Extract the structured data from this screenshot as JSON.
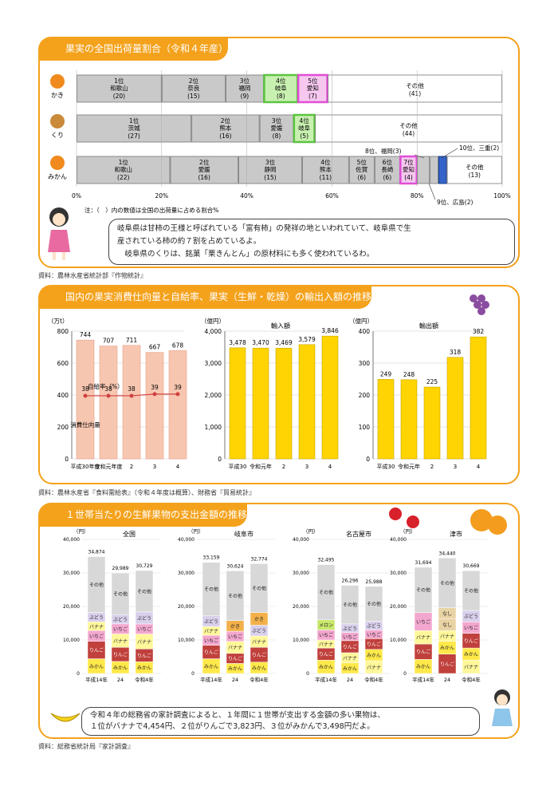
{
  "s1": {
    "title": "果実の全国出荷量割合（令和４年産）",
    "note": "注：（　）内の数値は全国の出荷量に占める割合%",
    "crops": [
      {
        "name": "かき",
        "segs": [
          {
            "label": "1位\n和歌山",
            "pct": "(20)",
            "v": 20
          },
          {
            "label": "2位\n奈良",
            "pct": "(15)",
            "v": 15
          },
          {
            "label": "3位\n福岡",
            "pct": "(9)",
            "v": 9
          },
          {
            "label": "4位\n岐阜",
            "pct": "(8)",
            "v": 8,
            "hl": "g"
          },
          {
            "label": "5位\n愛知",
            "pct": "(7)",
            "v": 7,
            "hl": "p"
          },
          {
            "label": "その他",
            "pct": "(41)",
            "v": 41
          }
        ]
      },
      {
        "name": "くり",
        "segs": [
          {
            "label": "1位\n茨城",
            "pct": "(27)",
            "v": 27
          },
          {
            "label": "2位\n熊本",
            "pct": "(16)",
            "v": 16
          },
          {
            "label": "3位\n愛媛",
            "pct": "(8)",
            "v": 8
          },
          {
            "label": "4位\n岐阜",
            "pct": "(5)",
            "v": 5,
            "hl": "g"
          },
          {
            "label": "その他",
            "pct": "(44)",
            "v": 44
          }
        ]
      },
      {
        "name": "みかん",
        "segs": [
          {
            "label": "1位\n和歌山",
            "pct": "(22)",
            "v": 22
          },
          {
            "label": "2位\n愛媛",
            "pct": "(16)",
            "v": 16
          },
          {
            "label": "3位\n静岡",
            "pct": "(15)",
            "v": 15
          },
          {
            "label": "4位\n熊本",
            "pct": "(11)",
            "v": 11
          },
          {
            "label": "5位\n佐賀",
            "pct": "(6)",
            "v": 6
          },
          {
            "label": "6位\n長崎",
            "pct": "(6)",
            "v": 6
          },
          {
            "label": "7位\n愛知",
            "pct": "(4)",
            "v": 4,
            "hl": "p"
          },
          {
            "label": "",
            "pct": "",
            "v": 3
          },
          {
            "label": "",
            "pct": "",
            "v": 2
          },
          {
            "label": "",
            "pct": "",
            "v": 2,
            "hl": "b"
          },
          {
            "label": "その他",
            "pct": "(13)",
            "v": 13
          }
        ]
      }
    ],
    "callouts": [
      "8位、福岡(3)",
      "10位、三重(2)",
      "9位、広島(2)"
    ],
    "xticks": [
      "0%",
      "20%",
      "40%",
      "60%",
      "80%",
      "100%"
    ],
    "bubble": [
      "岐阜県は甘柿の王様と呼ばれている「富有柿」の発祥の地といわれていて、岐阜県で生",
      "産されている柿の約７割を占めているよ。",
      "　岐阜県のくりは、銘菓「栗きんとん」の原材料にも多く使われているわ。"
    ],
    "source": "資料：農林水産省統計部『作物統計』"
  },
  "s2": {
    "title": "国内の果実消費仕向量と自給率、果実（生鮮・乾燥）の輸出入額の推移",
    "source": "資料：農林水産省『食料需給表』（令和４年度は概算）、財務省『貿易統計』"
  },
  "s3": {
    "title": "１世帯当たりの生鮮果物の支出金額の推移",
    "bubble": [
      "令和４年の総務省の家計調査によると、１年間に１世帯が支出する金額の多い果物は、",
      "１位がバナナで4,454円、２位がりんごで3,823円、３位がみかんで3,498円だよ。"
    ],
    "source": "資料：総務省統計局『家計調査』"
  },
  "chart_data": [
    {
      "type": "bar",
      "title": "",
      "ylabel": "（万t）",
      "categories": [
        "平成30年度",
        "令和元年度",
        "2",
        "3",
        "4"
      ],
      "series": [
        {
          "name": "消費仕向量",
          "values": [
            744,
            707,
            711,
            667,
            678
          ]
        }
      ],
      "line": {
        "name": "自給率（%）",
        "values": [
          38,
          38,
          38,
          39,
          39
        ]
      },
      "ylim": [
        0,
        800
      ],
      "yticks": [
        "0",
        "200",
        "400",
        "600",
        "800"
      ]
    },
    {
      "type": "bar",
      "title": "輸入額",
      "ylabel": "（億円）",
      "categories": [
        "平成30",
        "令和元年",
        "2",
        "3",
        "4"
      ],
      "values": [
        3478,
        3470,
        3469,
        3579,
        3846
      ],
      "value_labels": [
        "3,478",
        "3,470",
        "3,469",
        "3,579",
        "3,846"
      ],
      "ylim": [
        0,
        4000
      ],
      "yticks": [
        "0",
        "1,000",
        "2,000",
        "3,000",
        "4,000"
      ]
    },
    {
      "type": "bar",
      "title": "輸出額",
      "ylabel": "（億円）",
      "categories": [
        "平成30",
        "令和元年",
        "2",
        "3",
        "4"
      ],
      "values": [
        249,
        248,
        225,
        318,
        382
      ],
      "ylim": [
        0,
        400
      ],
      "yticks": [
        "0",
        "100",
        "200",
        "300",
        "400"
      ]
    },
    {
      "type": "bar",
      "title": "全国",
      "ylabel": "（円）",
      "categories": [
        "平成14年",
        "24",
        "令和4年"
      ],
      "totals": [
        "34,874",
        "29,989",
        "30,729"
      ],
      "stacks": [
        [
          [
            "みかん",
            4400
          ],
          [
            "りんご",
            5200
          ],
          [
            "いちご",
            3200
          ],
          [
            "バナナ",
            2600
          ],
          [
            "ぶどう",
            2800
          ],
          [
            "その他",
            16674
          ]
        ],
        [
          [
            "みかん",
            3600
          ],
          [
            "りんご",
            4200
          ],
          [
            "バナナ",
            4000
          ],
          [
            "いちご",
            3000
          ],
          [
            "ぶどう",
            2800
          ],
          [
            "その他",
            12389
          ]
        ],
        [
          [
            "みかん",
            3498
          ],
          [
            "りんご",
            3823
          ],
          [
            "バナナ",
            4454
          ],
          [
            "いちご",
            3000
          ],
          [
            "ぶどう",
            3600
          ],
          [
            "その他",
            12354
          ]
        ]
      ]
    },
    {
      "type": "bar",
      "title": "岐阜市",
      "ylabel": "（円）",
      "categories": [
        "平成14年",
        "24",
        "令和4年"
      ],
      "totals": [
        "33,159",
        "30,624",
        "32,774"
      ],
      "stacks": [
        [
          [
            "みかん",
            4400
          ],
          [
            "りんご",
            4000
          ],
          [
            "いちご",
            3000
          ],
          [
            "バナナ",
            2600
          ],
          [
            "ぶどう",
            3200
          ],
          [
            "その他",
            15959
          ]
        ],
        [
          [
            "みかん",
            3000
          ],
          [
            "りんご",
            3000
          ],
          [
            "バナナ",
            3600
          ],
          [
            "いちご",
            3000
          ],
          [
            "かき",
            3200
          ],
          [
            "その他",
            14824
          ]
        ],
        [
          [
            "みかん",
            3400
          ],
          [
            "りんご",
            4400
          ],
          [
            "バナナ",
            3400
          ],
          [
            "ぶどう",
            3200
          ],
          [
            "かき",
            3800
          ],
          [
            "その他",
            14574
          ]
        ]
      ]
    },
    {
      "type": "bar",
      "title": "名古屋市",
      "ylabel": "（円）",
      "categories": [
        "平成14年",
        "24",
        "令和4年"
      ],
      "totals": [
        "32,495",
        "26,296",
        "25,988"
      ],
      "stacks": [
        [
          [
            "みかん",
            4000
          ],
          [
            "りんご",
            3600
          ],
          [
            "バナナ",
            2400
          ],
          [
            "いちご",
            3000
          ],
          [
            "メロン",
            3000
          ],
          [
            "その他",
            16495
          ]
        ],
        [
          [
            "みかん",
            3200
          ],
          [
            "バナナ",
            3000
          ],
          [
            "りんご",
            3600
          ],
          [
            "いちご",
            2400
          ],
          [
            "ぶどう",
            2600
          ],
          [
            "その他",
            11496
          ]
        ],
        [
          [
            "バナナ",
            3800
          ],
          [
            "みかん",
            3400
          ],
          [
            "りんご",
            3200
          ],
          [
            "いちご",
            2600
          ],
          [
            "ぶどう",
            2600
          ],
          [
            "その他",
            10388
          ]
        ]
      ]
    },
    {
      "type": "bar",
      "title": "津市",
      "ylabel": "（円）",
      "categories": [
        "平成14年",
        "24",
        "令和4年"
      ],
      "totals": [
        "31,694",
        "34,440",
        "30,669"
      ],
      "stacks": [
        [
          [
            "みかん",
            4200
          ],
          [
            "りんご",
            4600
          ],
          [
            "バナナ",
            4000
          ],
          [
            "いちご",
            5400
          ],
          [
            "その他",
            13494
          ]
        ],
        [
          [
            "りんご",
            5800
          ],
          [
            "みかん",
            3800
          ],
          [
            "バナナ",
            3200
          ],
          [
            "なし",
            3600
          ],
          [
            "なし",
            3200
          ],
          [
            "その他",
            14840
          ]
        ],
        [
          [
            "バナナ",
            4000
          ],
          [
            "みかん",
            3600
          ],
          [
            "りんご",
            4400
          ],
          [
            "いちご",
            3400
          ],
          [
            "ぶどう",
            3400
          ],
          [
            "その他",
            11869
          ]
        ]
      ]
    }
  ],
  "axis_s3": {
    "yticks": [
      "0",
      "10,000",
      "20,000",
      "30,000",
      "40,000"
    ]
  },
  "colors": {
    "accent": "#f4a21c",
    "grayBar": "#bfbfbf",
    "pink": "#f7c6b0",
    "yellow": "#ffd400",
    "green": "#5cc441",
    "magenta": "#e04fd6",
    "blue": "#3464c8"
  }
}
